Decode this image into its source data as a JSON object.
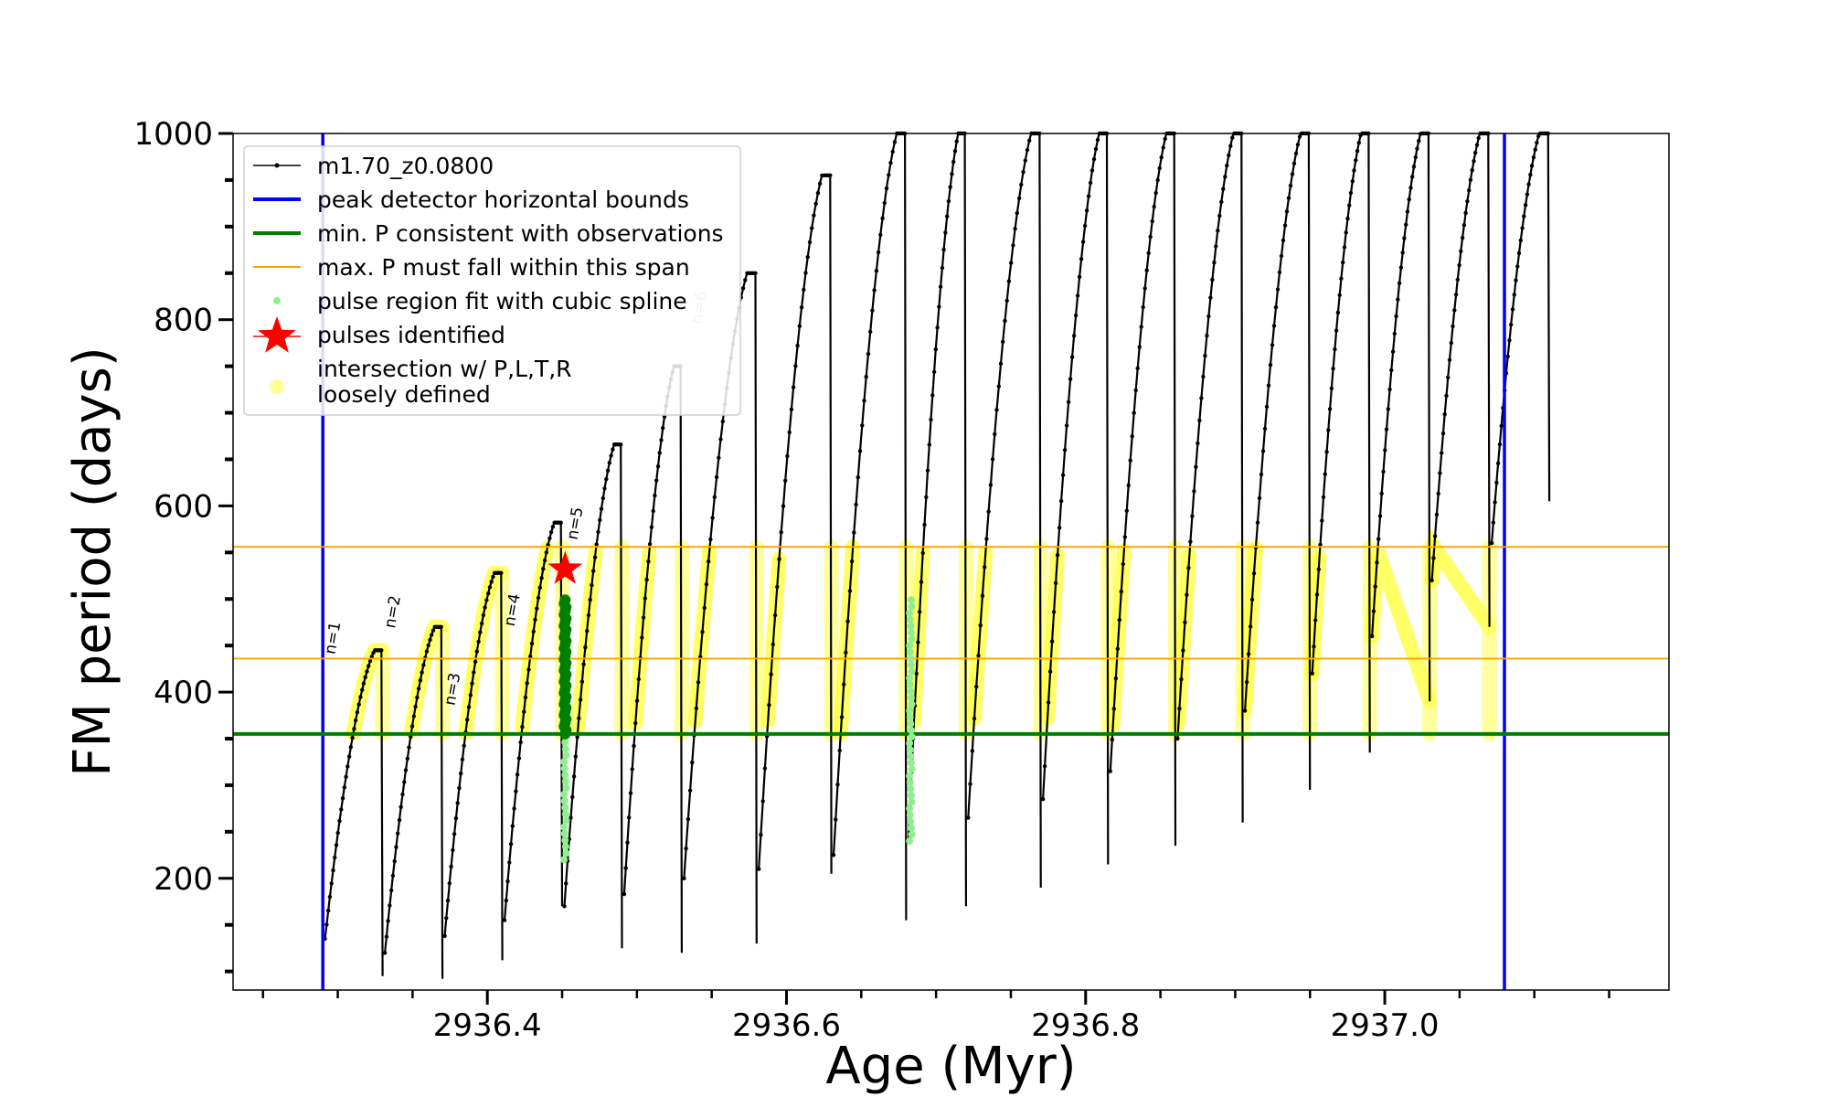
{
  "chart_data": {
    "type": "line",
    "title": "",
    "xlabel": "Age (Myr)",
    "ylabel": "FM period (days)",
    "xlim": [
      2936.23,
      2937.19
    ],
    "ylim": [
      80,
      1000
    ],
    "x_ticks": [
      2936.4,
      2936.6,
      2936.8,
      2937.0
    ],
    "x_tick_labels": [
      "2936.4",
      "2936.6",
      "2936.8",
      "2937.0"
    ],
    "y_ticks": [
      200,
      400,
      600,
      800,
      1000
    ],
    "y_tick_labels": [
      "200",
      "400",
      "600",
      "800",
      "1000"
    ],
    "grid": false,
    "legend_position": "top-left",
    "legend": [
      {
        "label": "m1.70_z0.0800",
        "marker": "line-dot",
        "color": "#000000"
      },
      {
        "label": "peak detector horizontal bounds",
        "marker": "line",
        "color": "#0000ff"
      },
      {
        "label": "min. P consistent with observations",
        "marker": "line",
        "color": "#008000"
      },
      {
        "label": "max. P must fall within this span",
        "marker": "thin-line",
        "color": "#ffa500"
      },
      {
        "label": "pulse region fit with cubic spline",
        "marker": "dot",
        "color": "#90ee90"
      },
      {
        "label": "pulses identified",
        "marker": "star",
        "color": "#ff0000"
      },
      {
        "label": "intersection w/ P,L,T,R",
        "label2": "loosely defined",
        "marker": "circle",
        "color": "#ffff66"
      }
    ],
    "vertical_bounds": [
      2936.29,
      2937.08
    ],
    "min_period": 355,
    "max_period_span": [
      436,
      556
    ],
    "pulses": [
      {
        "t0": 2936.29,
        "t1": 2936.33,
        "start": 135,
        "peak": 445
      },
      {
        "t0": 2936.33,
        "t1": 2936.37,
        "start": 120,
        "peak": 470
      },
      {
        "t0": 2936.37,
        "t1": 2936.41,
        "start": 138,
        "peak": 528
      },
      {
        "t0": 2936.41,
        "t1": 2936.45,
        "start": 155,
        "peak": 582
      },
      {
        "t0": 2936.45,
        "t1": 2936.49,
        "start": 170,
        "peak": 666
      },
      {
        "t0": 2936.49,
        "t1": 2936.53,
        "start": 183,
        "peak": 750
      },
      {
        "t0": 2936.53,
        "t1": 2936.58,
        "start": 200,
        "peak": 850
      },
      {
        "t0": 2936.58,
        "t1": 2936.63,
        "start": 210,
        "peak": 955
      },
      {
        "t0": 2936.63,
        "t1": 2936.68,
        "start": 225,
        "peak": 1000
      },
      {
        "t0": 2936.68,
        "t1": 2936.72,
        "start": 240,
        "peak": 1000
      },
      {
        "t0": 2936.72,
        "t1": 2936.77,
        "start": 265,
        "peak": 1000
      },
      {
        "t0": 2936.77,
        "t1": 2936.815,
        "start": 285,
        "peak": 1000
      },
      {
        "t0": 2936.815,
        "t1": 2936.86,
        "start": 315,
        "peak": 1000
      },
      {
        "t0": 2936.86,
        "t1": 2936.905,
        "start": 350,
        "peak": 1000
      },
      {
        "t0": 2936.905,
        "t1": 2936.95,
        "start": 380,
        "peak": 1000
      },
      {
        "t0": 2936.95,
        "t1": 2936.99,
        "start": 420,
        "peak": 1000
      },
      {
        "t0": 2936.99,
        "t1": 2937.03,
        "start": 460,
        "peak": 1000
      },
      {
        "t0": 2937.03,
        "t1": 2937.07,
        "start": 520,
        "peak": 1000
      },
      {
        "t0": 2937.07,
        "t1": 2937.11,
        "start": 560,
        "peak": 1000
      }
    ],
    "pulse_minima": [
      {
        "t": 2936.29,
        "p": 135
      },
      {
        "t": 2936.33,
        "p": 95
      },
      {
        "t": 2936.37,
        "p": 92
      },
      {
        "t": 2936.41,
        "p": 112
      },
      {
        "t": 2936.45,
        "p": 170
      },
      {
        "t": 2936.49,
        "p": 125
      },
      {
        "t": 2936.53,
        "p": 120
      },
      {
        "t": 2936.58,
        "p": 130
      },
      {
        "t": 2936.63,
        "p": 205
      },
      {
        "t": 2936.68,
        "p": 155
      },
      {
        "t": 2936.72,
        "p": 170
      },
      {
        "t": 2936.77,
        "p": 190
      },
      {
        "t": 2936.815,
        "p": 215
      },
      {
        "t": 2936.86,
        "p": 235
      },
      {
        "t": 2936.905,
        "p": 260
      },
      {
        "t": 2936.95,
        "p": 295
      },
      {
        "t": 2936.99,
        "p": 335
      },
      {
        "t": 2937.03,
        "p": 390
      },
      {
        "t": 2937.07,
        "p": 470
      },
      {
        "t": 2937.11,
        "p": 605
      }
    ],
    "pulse_labels": [
      {
        "text": "n=1",
        "t": 2936.298,
        "p": 440,
        "color": "#000000"
      },
      {
        "text": "n=2",
        "t": 2936.338,
        "p": 468,
        "color": "#000000"
      },
      {
        "text": "n=3",
        "t": 2936.378,
        "p": 385,
        "color": "#000000"
      },
      {
        "text": "n=4",
        "t": 2936.418,
        "p": 470,
        "color": "#000000"
      },
      {
        "text": "n=5",
        "t": 2936.46,
        "p": 563,
        "color": "#000000"
      },
      {
        "text": "n=6",
        "t": 2936.543,
        "p": 795,
        "color": "#b0b0b0"
      }
    ],
    "identified_pulse": {
      "t": 2936.452,
      "p": 532
    },
    "spline_fit_regions": [
      {
        "t": 2936.452,
        "p_low": 220,
        "p_high": 500
      },
      {
        "t": 2936.683,
        "p_low": 240,
        "p_high": 500
      }
    ],
    "dark_green_region": {
      "t": 2936.452,
      "p_low": 355,
      "p_high": 500
    }
  }
}
